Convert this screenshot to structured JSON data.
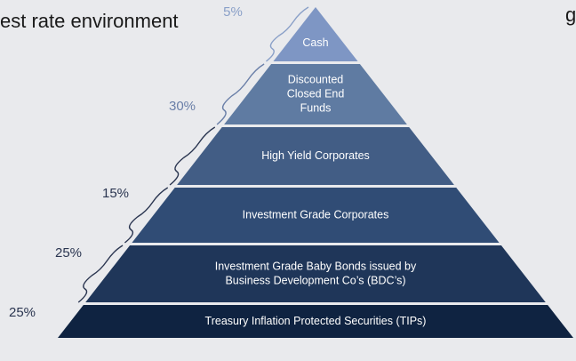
{
  "header": {
    "title_fragment": "est rate environment",
    "title_fragment_right": "g"
  },
  "layers": [
    {
      "label": [
        "Cash"
      ],
      "percent": "5%"
    },
    {
      "label": [
        "Discounted",
        "Closed End",
        "Funds"
      ],
      "percent": "30%"
    },
    {
      "label": [
        "High Yield Corporates"
      ],
      "percent": "15%"
    },
    {
      "label": [
        "Investment Grade Corporates"
      ],
      "percent": "25%"
    },
    {
      "label": [
        "Investment Grade Baby Bonds issued by",
        "Business Development Co’s (BDC’s)"
      ],
      "percent": "25%"
    },
    {
      "label": [
        "Treasury Inflation Protected Securities (TIPs)"
      ]
    }
  ]
}
